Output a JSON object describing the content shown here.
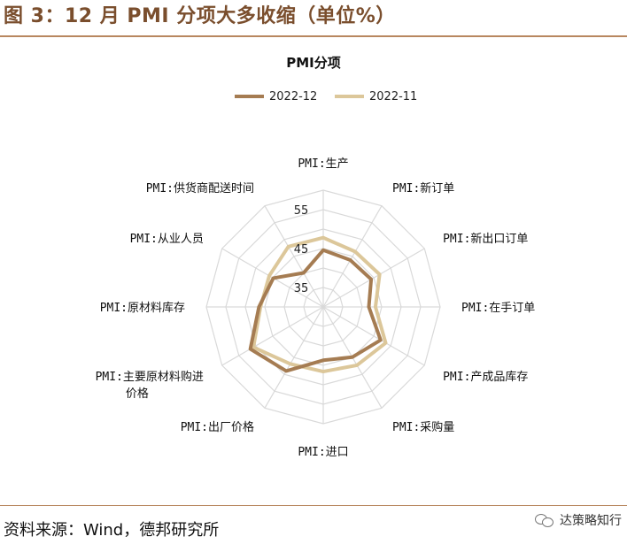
{
  "figure": {
    "title": "图 3：12 月 PMI 分项大多收缩（单位%）",
    "source": "资料来源：Wind，德邦研究所",
    "watermark": "达策略知行"
  },
  "colors": {
    "series_2022_12": "#a57c52",
    "series_2022_11": "#dcc79a",
    "grid": "#d9d9d9",
    "accent": "#b8875f"
  },
  "chart_data": {
    "type": "radar",
    "title": "PMI分项",
    "legend_position": "top",
    "grid": true,
    "rlim": [
      30,
      60
    ],
    "ticks": [
      "35",
      "45",
      "55"
    ],
    "tick_values": [
      35,
      45,
      55
    ],
    "categories": [
      "PMI:生产",
      "PMI:新订单",
      "PMI:新出口订单",
      "PMI:在手订单",
      "PMI:产成品库存",
      "PMI:采购量",
      "PMI:进口",
      "PMI:出厂价格",
      [
        "PMI:主要原材料购进",
        "价格"
      ],
      "PMI:原材料库存",
      "PMI:从业人员",
      "PMI:供货商配送时间"
    ],
    "series": [
      {
        "name": "2022-12",
        "values": [
          44.6,
          43.9,
          44.2,
          41.7,
          47.0,
          44.9,
          43.7,
          49.0,
          51.6,
          46.5,
          44.8,
          40.1
        ]
      },
      {
        "name": "2022-11",
        "values": [
          47.8,
          46.4,
          46.7,
          43.4,
          48.5,
          47.3,
          46.6,
          46.9,
          50.7,
          46.1,
          46.0,
          47.9
        ]
      }
    ]
  }
}
